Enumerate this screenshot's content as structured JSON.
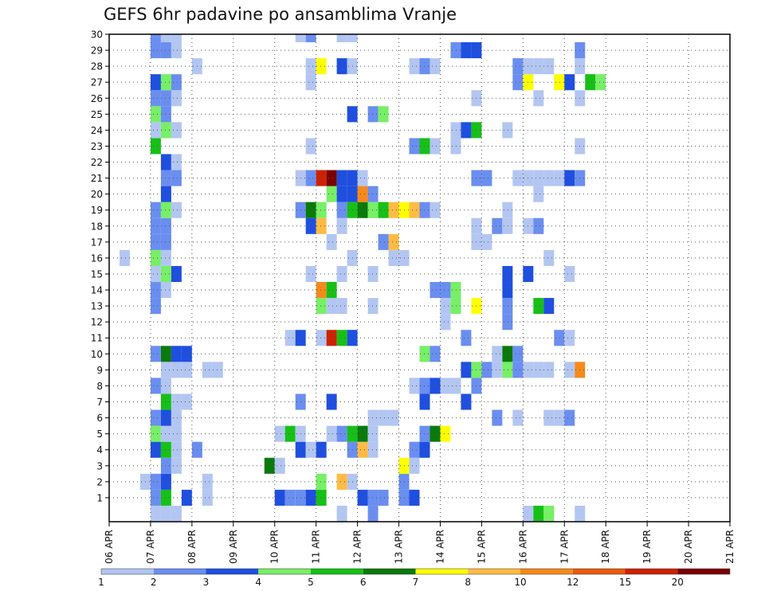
{
  "chart_data": {
    "type": "heatmap",
    "title": "GEFS 6hr padavine po ansamblima Vranje",
    "xlabel": "",
    "ylabel": "",
    "members": [
      1,
      2,
      3,
      4,
      5,
      6,
      7,
      8,
      9,
      10,
      11,
      12,
      13,
      14,
      15,
      16,
      17,
      18,
      19,
      20,
      21,
      22,
      23,
      24,
      25,
      26,
      27,
      28,
      29,
      30
    ],
    "x_ticks": [
      "06 APR",
      "07 APR",
      "08 APR",
      "09 APR",
      "10 APR",
      "11 APR",
      "12 APR",
      "13 APR",
      "14 APR",
      "15 APR",
      "16 APR",
      "17 APR",
      "18 APR",
      "19 APR",
      "20 APR",
      "21 APR"
    ],
    "xlim_days": [
      0,
      15
    ],
    "step_hours": 6,
    "grid": true,
    "colorbar": {
      "labels": [
        "1",
        "2",
        "3",
        "4",
        "5",
        "6",
        "7",
        "8",
        "10",
        "12",
        "15",
        "20"
      ],
      "colors": [
        "#b3c6f2",
        "#6a8ef0",
        "#1f4fe0",
        "#77ef66",
        "#16c016",
        "#0a7a0a",
        "#ffff00",
        "#ffbb44",
        "#f58a1a",
        "#e85a10",
        "#cc2200",
        "#7a0000"
      ]
    },
    "cells": [
      [
        1,
        4,
        2
      ],
      [
        1,
        5,
        5
      ],
      [
        1,
        7,
        3
      ],
      [
        1,
        9,
        1
      ],
      [
        1,
        16,
        3
      ],
      [
        1,
        17,
        2
      ],
      [
        1,
        18,
        2
      ],
      [
        1,
        19,
        3
      ],
      [
        1,
        20,
        5
      ],
      [
        1,
        24,
        3
      ],
      [
        1,
        25,
        2
      ],
      [
        1,
        26,
        2
      ],
      [
        1,
        28,
        2
      ],
      [
        1,
        29,
        3
      ],
      [
        2,
        3,
        1
      ],
      [
        2,
        4,
        2
      ],
      [
        2,
        5,
        3
      ],
      [
        2,
        9,
        1
      ],
      [
        2,
        20,
        4
      ],
      [
        2,
        22,
        8
      ],
      [
        2,
        23,
        1
      ],
      [
        2,
        28,
        2
      ],
      [
        3,
        5,
        2
      ],
      [
        3,
        6,
        1
      ],
      [
        3,
        15,
        6
      ],
      [
        3,
        16,
        1
      ],
      [
        3,
        29,
        1
      ],
      [
        3,
        28,
        7
      ],
      [
        4,
        4,
        3
      ],
      [
        4,
        5,
        5
      ],
      [
        4,
        6,
        1
      ],
      [
        4,
        8,
        2
      ],
      [
        4,
        18,
        3
      ],
      [
        4,
        19,
        1
      ],
      [
        4,
        20,
        3
      ],
      [
        4,
        23,
        2
      ],
      [
        4,
        24,
        8
      ],
      [
        4,
        25,
        1
      ],
      [
        4,
        29,
        2
      ],
      [
        4,
        30,
        3
      ],
      [
        5,
        4,
        4
      ],
      [
        5,
        5,
        1
      ],
      [
        5,
        6,
        1
      ],
      [
        5,
        16,
        1
      ],
      [
        5,
        17,
        5
      ],
      [
        5,
        18,
        1
      ],
      [
        5,
        21,
        1
      ],
      [
        5,
        22,
        2
      ],
      [
        5,
        23,
        5
      ],
      [
        5,
        24,
        6
      ],
      [
        5,
        25,
        1
      ],
      [
        5,
        30,
        2
      ],
      [
        5,
        31,
        6
      ],
      [
        5,
        32,
        7
      ],
      [
        6,
        4,
        2
      ],
      [
        6,
        5,
        3
      ],
      [
        6,
        6,
        1
      ],
      [
        6,
        25,
        1
      ],
      [
        6,
        26,
        1
      ],
      [
        6,
        27,
        1
      ],
      [
        6,
        37,
        2
      ],
      [
        6,
        39,
        1
      ],
      [
        6,
        42,
        1
      ],
      [
        6,
        43,
        1
      ],
      [
        6,
        44,
        2
      ],
      [
        7,
        5,
        5
      ],
      [
        7,
        6,
        1
      ],
      [
        7,
        7,
        1
      ],
      [
        7,
        18,
        2
      ],
      [
        7,
        21,
        3
      ],
      [
        7,
        30,
        3
      ],
      [
        7,
        34,
        3
      ],
      [
        8,
        4,
        2
      ],
      [
        8,
        5,
        1
      ],
      [
        8,
        29,
        1
      ],
      [
        8,
        30,
        2
      ],
      [
        8,
        31,
        3
      ],
      [
        8,
        32,
        1
      ],
      [
        8,
        33,
        1
      ],
      [
        8,
        35,
        2
      ],
      [
        9,
        5,
        1
      ],
      [
        9,
        6,
        1
      ],
      [
        9,
        7,
        1
      ],
      [
        9,
        9,
        1
      ],
      [
        9,
        10,
        1
      ],
      [
        9,
        34,
        3
      ],
      [
        9,
        35,
        4
      ],
      [
        9,
        36,
        2
      ],
      [
        9,
        37,
        1
      ],
      [
        9,
        38,
        4
      ],
      [
        9,
        39,
        2
      ],
      [
        9,
        40,
        1
      ],
      [
        9,
        41,
        1
      ],
      [
        9,
        42,
        1
      ],
      [
        9,
        44,
        1
      ],
      [
        9,
        45,
        9
      ],
      [
        10,
        4,
        2
      ],
      [
        10,
        5,
        6
      ],
      [
        10,
        6,
        3
      ],
      [
        10,
        7,
        3
      ],
      [
        10,
        30,
        4
      ],
      [
        10,
        31,
        2
      ],
      [
        10,
        37,
        1
      ],
      [
        10,
        38,
        6
      ],
      [
        10,
        39,
        2
      ],
      [
        11,
        17,
        1
      ],
      [
        11,
        18,
        3
      ],
      [
        11,
        20,
        1
      ],
      [
        11,
        21,
        11
      ],
      [
        11,
        22,
        5
      ],
      [
        11,
        23,
        3
      ],
      [
        11,
        34,
        2
      ],
      [
        11,
        43,
        2
      ],
      [
        11,
        44,
        1
      ],
      [
        12,
        32,
        1
      ],
      [
        12,
        38,
        2
      ],
      [
        13,
        4,
        2
      ],
      [
        13,
        20,
        4
      ],
      [
        13,
        21,
        1
      ],
      [
        13,
        22,
        1
      ],
      [
        13,
        25,
        1
      ],
      [
        13,
        32,
        1
      ],
      [
        13,
        33,
        4
      ],
      [
        13,
        35,
        7
      ],
      [
        13,
        38,
        2
      ],
      [
        13,
        41,
        5
      ],
      [
        13,
        42,
        3
      ],
      [
        14,
        4,
        2
      ],
      [
        14,
        5,
        1
      ],
      [
        14,
        20,
        9
      ],
      [
        14,
        21,
        5
      ],
      [
        14,
        31,
        2
      ],
      [
        14,
        32,
        2
      ],
      [
        14,
        33,
        4
      ],
      [
        14,
        38,
        3
      ],
      [
        15,
        4,
        1
      ],
      [
        15,
        5,
        4
      ],
      [
        15,
        6,
        3
      ],
      [
        15,
        19,
        1
      ],
      [
        15,
        22,
        1
      ],
      [
        15,
        25,
        1
      ],
      [
        15,
        38,
        3
      ],
      [
        15,
        40,
        3
      ],
      [
        15,
        44,
        1
      ],
      [
        16,
        1,
        1
      ],
      [
        16,
        4,
        4
      ],
      [
        16,
        5,
        1
      ],
      [
        16,
        23,
        1
      ],
      [
        16,
        27,
        1
      ],
      [
        16,
        28,
        1
      ],
      [
        16,
        42,
        1
      ],
      [
        17,
        4,
        2
      ],
      [
        17,
        5,
        2
      ],
      [
        17,
        21,
        1
      ],
      [
        17,
        26,
        2
      ],
      [
        17,
        27,
        8
      ],
      [
        17,
        35,
        1
      ],
      [
        17,
        36,
        1
      ],
      [
        18,
        4,
        2
      ],
      [
        18,
        5,
        2
      ],
      [
        18,
        19,
        3
      ],
      [
        18,
        20,
        8
      ],
      [
        18,
        22,
        1
      ],
      [
        18,
        35,
        1
      ],
      [
        18,
        37,
        2
      ],
      [
        18,
        38,
        1
      ],
      [
        18,
        40,
        1
      ],
      [
        18,
        41,
        2
      ],
      [
        19,
        4,
        2
      ],
      [
        19,
        5,
        4
      ],
      [
        19,
        6,
        1
      ],
      [
        19,
        18,
        2
      ],
      [
        19,
        19,
        6
      ],
      [
        19,
        20,
        4
      ],
      [
        19,
        22,
        2
      ],
      [
        19,
        23,
        5
      ],
      [
        19,
        24,
        6
      ],
      [
        19,
        25,
        4
      ],
      [
        19,
        26,
        5
      ],
      [
        19,
        27,
        8
      ],
      [
        19,
        28,
        7
      ],
      [
        19,
        29,
        8
      ],
      [
        19,
        30,
        2
      ],
      [
        19,
        31,
        1
      ],
      [
        19,
        38,
        1
      ],
      [
        20,
        5,
        3
      ],
      [
        20,
        21,
        4
      ],
      [
        20,
        22,
        3
      ],
      [
        20,
        23,
        3
      ],
      [
        20,
        24,
        9
      ],
      [
        20,
        25,
        2
      ],
      [
        20,
        41,
        1
      ],
      [
        21,
        5,
        2
      ],
      [
        21,
        6,
        2
      ],
      [
        21,
        18,
        1
      ],
      [
        21,
        19,
        2
      ],
      [
        21,
        20,
        11
      ],
      [
        21,
        21,
        12
      ],
      [
        21,
        22,
        3
      ],
      [
        21,
        23,
        3
      ],
      [
        21,
        24,
        1
      ],
      [
        21,
        35,
        2
      ],
      [
        21,
        36,
        2
      ],
      [
        21,
        39,
        1
      ],
      [
        21,
        40,
        1
      ],
      [
        21,
        41,
        1
      ],
      [
        21,
        42,
        1
      ],
      [
        21,
        43,
        1
      ],
      [
        21,
        44,
        3
      ],
      [
        21,
        45,
        2
      ],
      [
        22,
        5,
        3
      ],
      [
        22,
        6,
        1
      ],
      [
        23,
        4,
        5
      ],
      [
        23,
        19,
        1
      ],
      [
        23,
        29,
        2
      ],
      [
        23,
        30,
        5
      ],
      [
        23,
        31,
        1
      ],
      [
        23,
        33,
        1
      ],
      [
        23,
        45,
        1
      ],
      [
        24,
        4,
        1
      ],
      [
        24,
        5,
        4
      ],
      [
        24,
        6,
        1
      ],
      [
        24,
        33,
        1
      ],
      [
        24,
        34,
        3
      ],
      [
        24,
        35,
        5
      ],
      [
        24,
        38,
        1
      ],
      [
        25,
        4,
        4
      ],
      [
        25,
        5,
        2
      ],
      [
        25,
        23,
        3
      ],
      [
        25,
        25,
        2
      ],
      [
        25,
        26,
        4
      ],
      [
        26,
        4,
        2
      ],
      [
        26,
        5,
        2
      ],
      [
        26,
        6,
        1
      ],
      [
        26,
        35,
        1
      ],
      [
        26,
        41,
        1
      ],
      [
        26,
        45,
        1
      ],
      [
        27,
        4,
        3
      ],
      [
        27,
        5,
        4
      ],
      [
        27,
        6,
        2
      ],
      [
        27,
        19,
        1
      ],
      [
        27,
        39,
        2
      ],
      [
        27,
        40,
        7
      ],
      [
        27,
        43,
        7
      ],
      [
        27,
        44,
        3
      ],
      [
        27,
        46,
        5
      ],
      [
        27,
        47,
        4
      ],
      [
        28,
        8,
        1
      ],
      [
        28,
        19,
        1
      ],
      [
        28,
        20,
        7
      ],
      [
        28,
        22,
        3
      ],
      [
        28,
        23,
        1
      ],
      [
        28,
        29,
        1
      ],
      [
        28,
        30,
        2
      ],
      [
        28,
        31,
        1
      ],
      [
        28,
        39,
        2
      ],
      [
        28,
        40,
        1
      ],
      [
        28,
        41,
        1
      ],
      [
        28,
        42,
        1
      ],
      [
        28,
        45,
        1
      ],
      [
        29,
        4,
        2
      ],
      [
        29,
        5,
        2
      ],
      [
        29,
        6,
        1
      ],
      [
        29,
        33,
        2
      ],
      [
        29,
        34,
        3
      ],
      [
        29,
        35,
        3
      ],
      [
        29,
        45,
        2
      ],
      [
        30,
        4,
        2
      ],
      [
        30,
        5,
        1
      ],
      [
        30,
        6,
        1
      ],
      [
        30,
        18,
        1
      ],
      [
        30,
        19,
        2
      ],
      [
        30,
        22,
        1
      ],
      [
        30,
        23,
        1
      ],
      [
        0,
        4,
        1
      ],
      [
        0,
        5,
        1
      ],
      [
        0,
        6,
        1
      ],
      [
        0,
        22,
        1
      ],
      [
        0,
        25,
        2
      ],
      [
        0,
        40,
        1
      ],
      [
        0,
        41,
        5
      ],
      [
        0,
        42,
        4
      ],
      [
        0,
        45,
        1
      ]
    ]
  }
}
